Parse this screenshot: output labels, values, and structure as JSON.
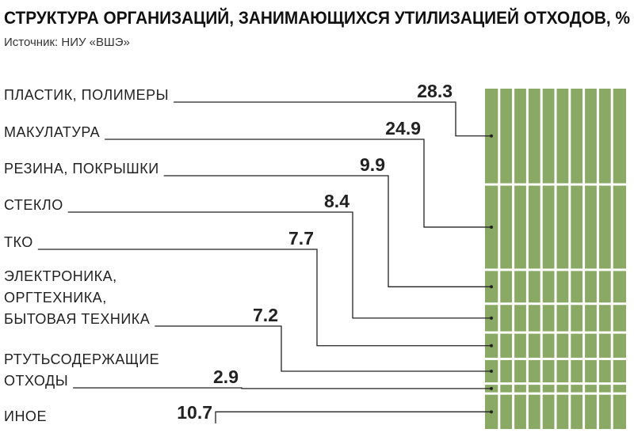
{
  "chart_data": {
    "type": "stacked-column-callout",
    "title": "СТРУКТУРА ОРГАНИЗАЦИЙ, ЗАНИМАЮЩИХСЯ УТИЛИЗАЦИЕЙ ОТХОДОВ, %",
    "subtitle": "Источник: НИУ «ВШЭ»",
    "categories": [
      [
        "ПЛАСТИК, ПОЛИМЕРЫ"
      ],
      [
        "МАКУЛАТУРА"
      ],
      [
        "РЕЗИНА, ПОКРЫШКИ"
      ],
      [
        "СТЕКЛО"
      ],
      [
        "ТКО"
      ],
      [
        "ЭЛЕКТРОНИКА,",
        "ОРГТЕХНИКА,",
        "БЫТОВАЯ ТЕХНИКА"
      ],
      [
        "РТУТЬСОДЕРЖАЩИЕ",
        "ОТХОДЫ"
      ],
      [
        "ИНОЕ"
      ]
    ],
    "values": [
      28.3,
      24.9,
      9.9,
      8.4,
      7.7,
      7.2,
      2.9,
      10.7
    ],
    "color": "#8aa965"
  }
}
